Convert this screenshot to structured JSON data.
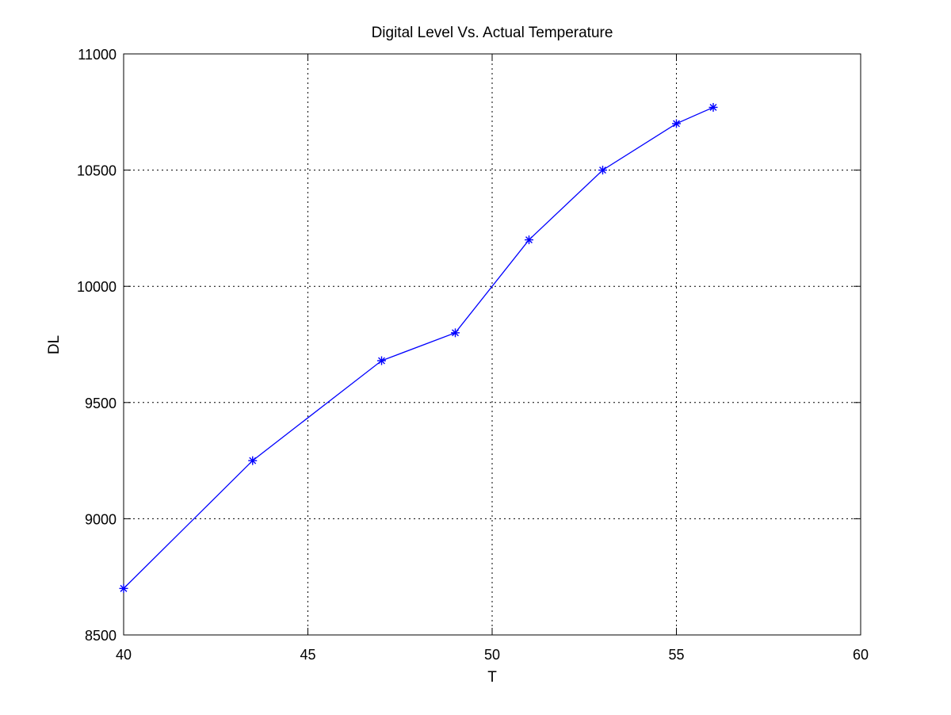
{
  "chart_data": {
    "type": "line",
    "title": "Digital Level Vs. Actual Temperature",
    "xlabel": "T",
    "ylabel": "DL",
    "xlim": [
      40,
      60
    ],
    "ylim": [
      8500,
      11000
    ],
    "xticks": [
      40,
      45,
      50,
      55,
      60
    ],
    "yticks": [
      8500,
      9000,
      9500,
      10000,
      10500,
      11000
    ],
    "xtick_labels": [
      "40",
      "45",
      "50",
      "55",
      "60"
    ],
    "ytick_labels": [
      "8500",
      "9000",
      "9500",
      "10000",
      "10500",
      "11000"
    ],
    "grid": true,
    "legend": "none",
    "marker": "asterisk",
    "series": [
      {
        "color": "#0000ff",
        "x": [
          40,
          43.5,
          47,
          49,
          51,
          53,
          55,
          56
        ],
        "y": [
          8700,
          9250,
          9680,
          9800,
          10200,
          10500,
          10700,
          10770
        ]
      }
    ]
  }
}
